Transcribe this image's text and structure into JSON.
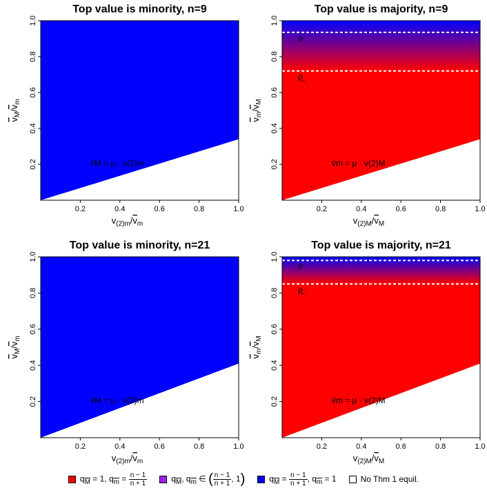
{
  "chart_data": [
    {
      "type": "heatmap",
      "title": "Top value is minority, n=9",
      "xlabel_main": "v",
      "xlabel_sub": "(2)m",
      "xlabel_den": "v",
      "xlabel_den_sub": "m",
      "ylabel_num": "v",
      "ylabel_num_sub": "M",
      "ylabel_den": "v",
      "ylabel_den_sub": "m",
      "xlim": [
        0,
        1
      ],
      "ylim": [
        0,
        1
      ],
      "xticks": [
        "0.2",
        "0.4",
        "0.6",
        "0.8",
        "1.0"
      ],
      "yticks": [
        "0.2",
        "0.4",
        "0.6",
        "0.8",
        "1.0"
      ],
      "boundary_label": "v̄M = μ · v(2)m",
      "boundary_slope": 0.34,
      "region_above": "blue",
      "region_below": "white",
      "dashed_lines": []
    },
    {
      "type": "heatmap",
      "title": "Top value is majority, n=9",
      "xlabel_main": "v",
      "xlabel_sub": "(2)M",
      "xlabel_den": "v",
      "xlabel_den_sub": "M",
      "ylabel_num": "v",
      "ylabel_num_sub": "m",
      "ylabel_den": "v",
      "ylabel_den_sub": "M",
      "xlim": [
        0,
        1
      ],
      "ylim": [
        0,
        1
      ],
      "xticks": [
        "0.2",
        "0.4",
        "0.6",
        "0.8",
        "1.0"
      ],
      "yticks": [
        "0.2",
        "0.4",
        "0.6",
        "0.8",
        "1.0"
      ],
      "boundary_label": "v̄m = μ · v(2)M",
      "boundary_slope": 0.34,
      "region_above": "red",
      "region_below": "white",
      "gradient_from": 0.72,
      "gradient_to": 1.0,
      "dashed_lines": [
        {
          "y": 0.935,
          "label": "ρ"
        },
        {
          "y": 0.72,
          "label": "ρ̲"
        }
      ]
    },
    {
      "type": "heatmap",
      "title": "Top value is minority, n=21",
      "xlabel_main": "v",
      "xlabel_sub": "(2)m",
      "xlabel_den": "v",
      "xlabel_den_sub": "m",
      "ylabel_num": "v",
      "ylabel_num_sub": "M",
      "ylabel_den": "v",
      "ylabel_den_sub": "m",
      "xlim": [
        0,
        1
      ],
      "ylim": [
        0,
        1
      ],
      "xticks": [
        "0.2",
        "0.4",
        "0.6",
        "0.8",
        "1.0"
      ],
      "yticks": [
        "0.2",
        "0.4",
        "0.6",
        "0.8",
        "1.0"
      ],
      "boundary_label": "v̄M = μ · v(2)m",
      "boundary_slope": 0.41,
      "region_above": "blue",
      "region_below": "white",
      "dashed_lines": []
    },
    {
      "type": "heatmap",
      "title": "Top value is majority, n=21",
      "xlabel_main": "v",
      "xlabel_sub": "(2)M",
      "xlabel_den": "v",
      "xlabel_den_sub": "M",
      "ylabel_num": "v",
      "ylabel_num_sub": "m",
      "ylabel_den": "v",
      "ylabel_den_sub": "M",
      "xlim": [
        0,
        1
      ],
      "ylim": [
        0,
        1
      ],
      "xticks": [
        "0.2",
        "0.4",
        "0.6",
        "0.8",
        "1.0"
      ],
      "yticks": [
        "0.2",
        "0.4",
        "0.6",
        "0.8",
        "1.0"
      ],
      "boundary_label": "v̄m = μ · v(2)M",
      "boundary_slope": 0.41,
      "region_above": "red",
      "region_below": "white",
      "gradient_from": 0.85,
      "gradient_to": 1.0,
      "dashed_lines": [
        {
          "y": 0.98,
          "label": "ρ"
        },
        {
          "y": 0.85,
          "label": "ρ̲"
        }
      ]
    }
  ],
  "colors": {
    "red": "#ff0000",
    "blue": "#0000ff",
    "purple": "#a020f0",
    "white": "#ffffff"
  },
  "legend": {
    "red_label_a": "q",
    "red_label_a_sub": "M",
    "red_label_b": " = 1, q",
    "red_label_c_sub": "m",
    "red_frac_num": "n − 1",
    "red_frac_den": "n + 1",
    "purple_a": "q",
    "purple_a_sub": "M",
    "purple_b": ", q",
    "purple_b_sub": "m",
    "purple_in": " ∈ ",
    "purple_frac_num": "n − 1",
    "purple_frac_den": "n + 1",
    "purple_tail": ", 1",
    "blue_a": "q",
    "blue_a_sub": "M",
    "blue_frac_num": "n − 1",
    "blue_frac_den": "n + 1",
    "blue_b": ", q",
    "blue_b_sub": "m",
    "blue_tail": " = 1",
    "white_label": "No Thm 1 equil."
  }
}
